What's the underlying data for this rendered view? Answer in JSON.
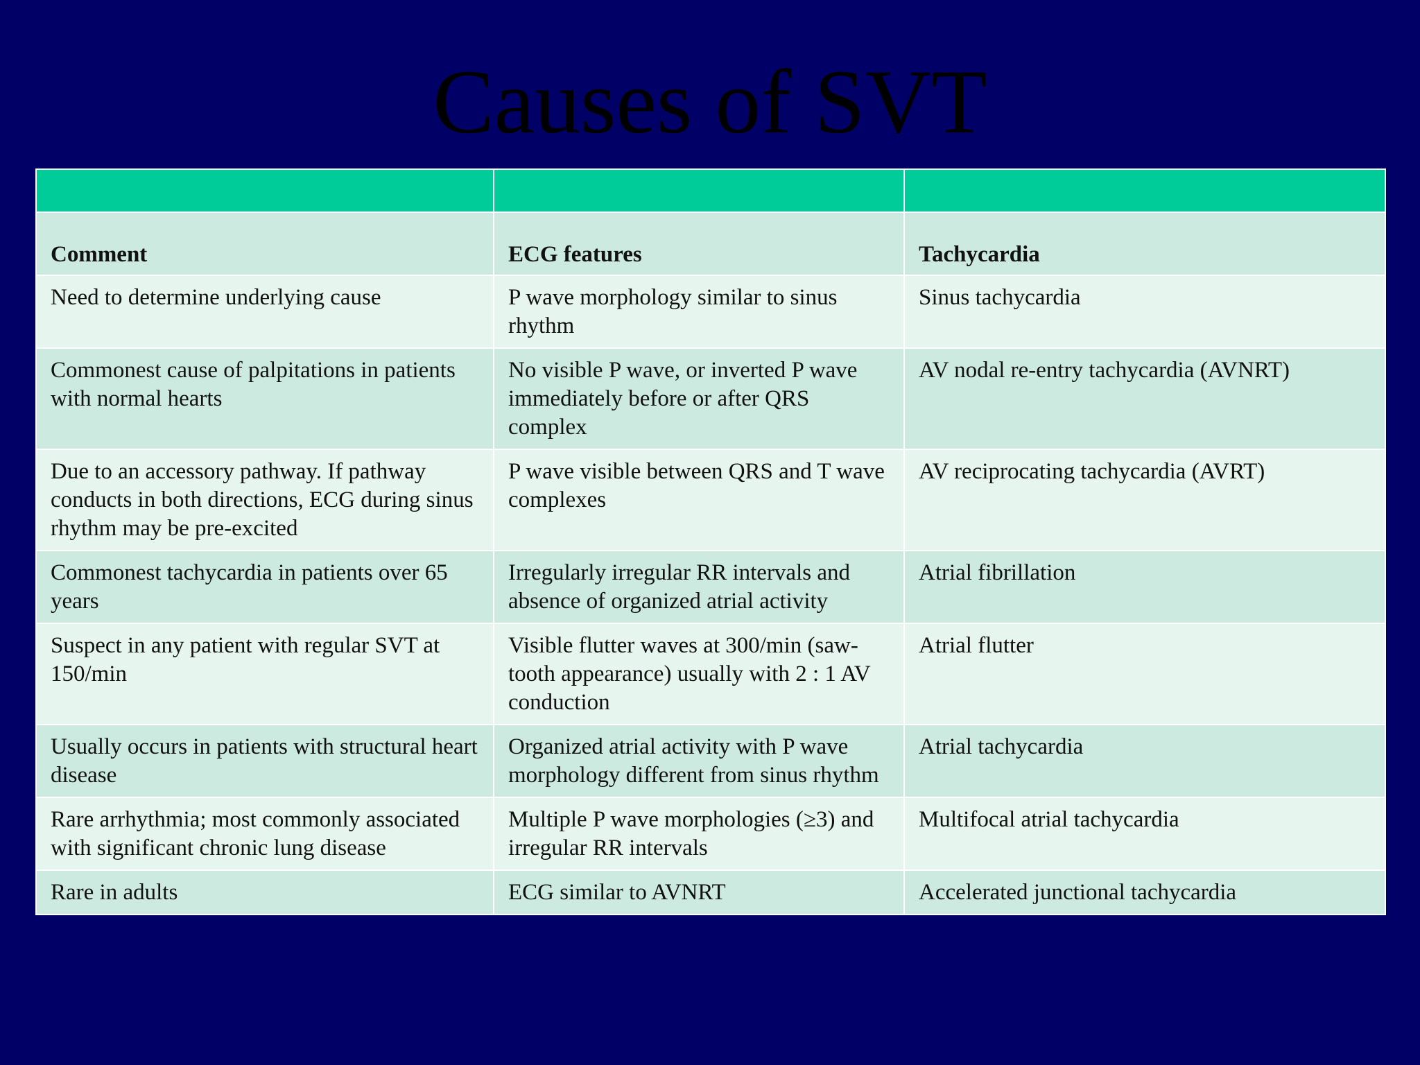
{
  "slide": {
    "title": "Causes of SVT"
  },
  "colors": {
    "background": "#000066",
    "title": "#000000",
    "accent_row": "#00cc99",
    "row_dark": "#cceadf",
    "row_light": "#e6f5ee"
  },
  "table": {
    "headers": [
      "Comment",
      "ECG features",
      "Tachycardia"
    ],
    "rows": [
      [
        "Need to determine underlying cause",
        "P wave morphology similar to sinus rhythm",
        "Sinus tachycardia"
      ],
      [
        "Commonest cause of palpitations in patients with normal hearts",
        "No visible P wave, or inverted P wave immediately before or after QRS complex",
        "AV nodal re-entry tachycardia (AVNRT)"
      ],
      [
        "Due to an accessory pathway. If pathway conducts in both directions, ECG during sinus rhythm may be pre-excited",
        "P wave visible between QRS and T wave complexes",
        "AV reciprocating tachycardia (AVRT)"
      ],
      [
        "Commonest tachycardia in patients over 65 years",
        "Irregularly irregular RR intervals and absence of organized atrial activity",
        "Atrial fibrillation"
      ],
      [
        "Suspect in any patient with regular SVT at 150/min",
        "Visible flutter waves at 300/min (saw-tooth appearance) usually with 2 : 1 AV conduction",
        "Atrial flutter"
      ],
      [
        "Usually occurs in patients with structural heart disease",
        "Organized atrial activity with P wave morphology different from sinus rhythm",
        "Atrial tachycardia"
      ],
      [
        "Rare arrhythmia; most commonly associated with significant chronic lung disease",
        "Multiple P wave morphologies (≥3) and irregular RR intervals",
        "Multifocal atrial tachycardia"
      ],
      [
        "Rare in adults",
        "ECG similar to AVNRT",
        "Accelerated junctional tachycardia"
      ]
    ]
  }
}
